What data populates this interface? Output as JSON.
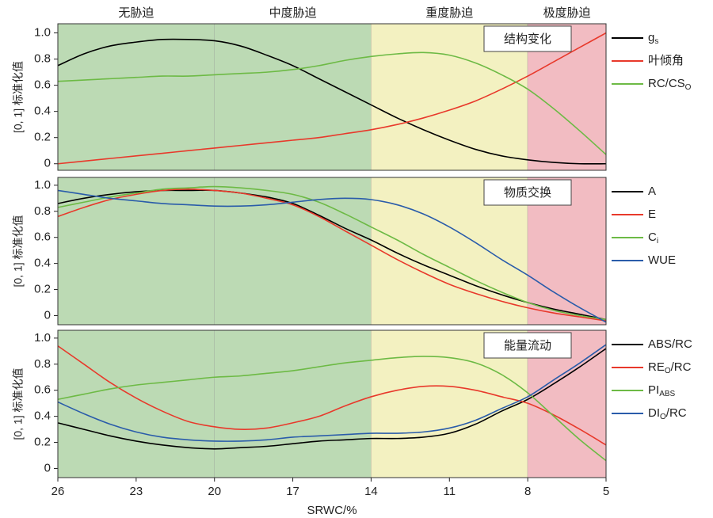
{
  "zones": [
    {
      "label": "无胁迫",
      "from": 26,
      "to": 20,
      "color": "#bcdab4"
    },
    {
      "label": "中度胁迫",
      "from": 20,
      "to": 14,
      "color": "#bcdab4"
    },
    {
      "label": "重度胁迫",
      "from": 14,
      "to": 8,
      "color": "#f3f1c1"
    },
    {
      "label": "极度胁迫",
      "from": 8,
      "to": 5,
      "color": "#f2bcc2"
    }
  ],
  "chart_data": [
    {
      "type": "line",
      "annotation": "结构变化",
      "ylabel": "[0, 1] 标准化值",
      "x": [
        26,
        25,
        24,
        23,
        22,
        21,
        20,
        19,
        18,
        17,
        16,
        15,
        14,
        13,
        12,
        11,
        10,
        9,
        8,
        7,
        6,
        5
      ],
      "xlim": [
        26,
        5
      ],
      "ylim": [
        -0.05,
        1.07
      ],
      "yticks": [
        0,
        0.2,
        0.4,
        0.6,
        0.8,
        {
          "value": 1,
          "label": "1.0"
        }
      ],
      "series": [
        {
          "name": [
            {
              "t": "g"
            },
            {
              "t": "s",
              "sub": true
            }
          ],
          "color": "#000000",
          "values": [
            0.75,
            0.84,
            0.9,
            0.93,
            0.95,
            0.95,
            0.94,
            0.9,
            0.83,
            0.75,
            0.65,
            0.55,
            0.45,
            0.35,
            0.26,
            0.18,
            0.11,
            0.06,
            0.03,
            0.01,
            0.0,
            0.0
          ]
        },
        {
          "name": [
            {
              "t": "叶倾角"
            }
          ],
          "color": "#e8392b",
          "values": [
            0.0,
            0.02,
            0.04,
            0.06,
            0.08,
            0.1,
            0.12,
            0.14,
            0.16,
            0.18,
            0.2,
            0.23,
            0.26,
            0.3,
            0.35,
            0.41,
            0.48,
            0.57,
            0.67,
            0.78,
            0.89,
            1.0
          ]
        },
        {
          "name": [
            {
              "t": "RC/CS"
            },
            {
              "t": "O",
              "sub": true
            }
          ],
          "color": "#6dba45",
          "values": [
            0.63,
            0.64,
            0.65,
            0.66,
            0.67,
            0.67,
            0.68,
            0.69,
            0.7,
            0.72,
            0.75,
            0.79,
            0.82,
            0.84,
            0.85,
            0.83,
            0.77,
            0.68,
            0.57,
            0.42,
            0.25,
            0.07
          ]
        }
      ]
    },
    {
      "type": "line",
      "annotation": "物质交换",
      "ylabel": "[0, 1] 标准化值",
      "x": [
        26,
        25,
        24,
        23,
        22,
        21,
        20,
        19,
        18,
        17,
        16,
        15,
        14,
        13,
        12,
        11,
        10,
        9,
        8,
        7,
        6,
        5
      ],
      "xlim": [
        26,
        5
      ],
      "ylim": [
        -0.07,
        1.06
      ],
      "yticks": [
        0,
        0.2,
        0.4,
        0.6,
        0.8,
        {
          "value": 1,
          "label": "1.0"
        }
      ],
      "series": [
        {
          "name": [
            {
              "t": "A"
            }
          ],
          "color": "#000000",
          "values": [
            0.86,
            0.9,
            0.93,
            0.95,
            0.96,
            0.96,
            0.96,
            0.94,
            0.91,
            0.86,
            0.77,
            0.67,
            0.58,
            0.48,
            0.39,
            0.31,
            0.23,
            0.16,
            0.1,
            0.05,
            0.01,
            -0.03
          ]
        },
        {
          "name": [
            {
              "t": "E"
            }
          ],
          "color": "#e8392b",
          "values": [
            0.76,
            0.83,
            0.89,
            0.93,
            0.96,
            0.97,
            0.96,
            0.94,
            0.9,
            0.85,
            0.76,
            0.65,
            0.54,
            0.43,
            0.33,
            0.24,
            0.17,
            0.11,
            0.06,
            0.02,
            -0.01,
            -0.04
          ]
        },
        {
          "name": [
            {
              "t": "C"
            },
            {
              "t": "i",
              "sub": true
            }
          ],
          "color": "#6dba45",
          "values": [
            0.83,
            0.87,
            0.91,
            0.94,
            0.97,
            0.98,
            0.99,
            0.98,
            0.96,
            0.93,
            0.87,
            0.78,
            0.68,
            0.58,
            0.47,
            0.37,
            0.27,
            0.18,
            0.1,
            0.04,
            0.0,
            -0.03
          ]
        },
        {
          "name": [
            {
              "t": "WUE"
            }
          ],
          "color": "#2a5caa",
          "values": [
            0.96,
            0.93,
            0.9,
            0.88,
            0.86,
            0.85,
            0.84,
            0.84,
            0.85,
            0.87,
            0.89,
            0.9,
            0.89,
            0.85,
            0.78,
            0.68,
            0.56,
            0.43,
            0.31,
            0.18,
            0.06,
            -0.05
          ]
        }
      ]
    },
    {
      "type": "line",
      "annotation": "能量流动",
      "ylabel": "[0, 1] 标准化值",
      "xlabel": "SRWC/%",
      "x": [
        26,
        25,
        24,
        23,
        22,
        21,
        20,
        19,
        18,
        17,
        16,
        15,
        14,
        13,
        12,
        11,
        10,
        9,
        8,
        7,
        6,
        5
      ],
      "xlim": [
        26,
        5
      ],
      "xticks": [
        26,
        23,
        20,
        17,
        14,
        11,
        8,
        5
      ],
      "ylim": [
        -0.07,
        1.06
      ],
      "yticks": [
        0,
        0.2,
        0.4,
        0.6,
        0.8,
        {
          "value": 1,
          "label": "1.0"
        }
      ],
      "series": [
        {
          "name": [
            {
              "t": "ABS/RC"
            }
          ],
          "color": "#000000",
          "values": [
            0.35,
            0.3,
            0.25,
            0.21,
            0.18,
            0.16,
            0.15,
            0.16,
            0.17,
            0.19,
            0.21,
            0.22,
            0.23,
            0.23,
            0.24,
            0.27,
            0.34,
            0.44,
            0.53,
            0.65,
            0.78,
            0.92
          ]
        },
        {
          "name": [
            {
              "t": "RE"
            },
            {
              "t": "O",
              "sub": true
            },
            {
              "t": "/RC"
            }
          ],
          "color": "#e8392b",
          "values": [
            0.94,
            0.8,
            0.66,
            0.54,
            0.44,
            0.36,
            0.32,
            0.3,
            0.31,
            0.35,
            0.4,
            0.48,
            0.55,
            0.6,
            0.63,
            0.63,
            0.6,
            0.55,
            0.5,
            0.41,
            0.3,
            0.18
          ]
        },
        {
          "name": [
            {
              "t": "PI"
            },
            {
              "t": "ABS",
              "sub": true
            }
          ],
          "color": "#6dba45",
          "values": [
            0.53,
            0.57,
            0.61,
            0.64,
            0.66,
            0.68,
            0.7,
            0.71,
            0.73,
            0.75,
            0.78,
            0.81,
            0.83,
            0.85,
            0.86,
            0.85,
            0.81,
            0.72,
            0.58,
            0.4,
            0.22,
            0.06
          ]
        },
        {
          "name": [
            {
              "t": "DI"
            },
            {
              "t": "O",
              "sub": true
            },
            {
              "t": "/RC"
            }
          ],
          "color": "#2a5caa",
          "values": [
            0.51,
            0.42,
            0.34,
            0.28,
            0.24,
            0.22,
            0.21,
            0.21,
            0.22,
            0.24,
            0.25,
            0.26,
            0.27,
            0.27,
            0.28,
            0.31,
            0.37,
            0.46,
            0.55,
            0.68,
            0.81,
            0.95
          ]
        }
      ]
    }
  ]
}
